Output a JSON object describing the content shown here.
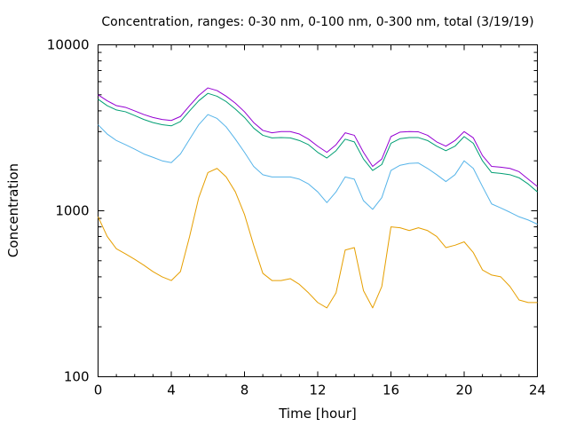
{
  "chart_data": {
    "type": "line",
    "title": "Concentration, ranges: 0-30 nm, 0-100 nm, 0-300 nm, total (3/19/19)",
    "xlabel": "Time [hour]",
    "ylabel": "Concentration",
    "xlim": [
      0,
      24
    ],
    "ylim": [
      100,
      10000
    ],
    "yscale": "log",
    "grid": false,
    "x_ticks": [
      0,
      4,
      8,
      12,
      16,
      20,
      24
    ],
    "x_tick_labels": [
      "0",
      "4",
      "8",
      "12",
      "16",
      "20",
      "24"
    ],
    "y_ticks": [
      100,
      1000,
      10000
    ],
    "y_tick_labels": [
      "100",
      "1000",
      "10000"
    ],
    "x": [
      0,
      0.5,
      1,
      1.5,
      2,
      2.5,
      3,
      3.5,
      4,
      4.5,
      5,
      5.5,
      6,
      6.5,
      7,
      7.5,
      8,
      8.5,
      9,
      9.5,
      10,
      10.5,
      11,
      11.5,
      12,
      12.5,
      13,
      13.5,
      14,
      14.5,
      15,
      15.5,
      16,
      16.5,
      17,
      17.5,
      18,
      18.5,
      19,
      19.5,
      20,
      20.5,
      21,
      21.5,
      22,
      22.5,
      23,
      23.5,
      24
    ],
    "series": [
      {
        "color": "#e69f00",
        "values": [
          920,
          700,
          590,
          550,
          510,
          470,
          430,
          400,
          380,
          430,
          700,
          1200,
          1700,
          1800,
          1600,
          1300,
          950,
          620,
          420,
          380,
          380,
          390,
          360,
          320,
          280,
          260,
          320,
          580,
          600,
          330,
          260,
          350,
          800,
          790,
          760,
          790,
          760,
          700,
          600,
          620,
          650,
          560,
          440,
          410,
          400,
          350,
          290,
          280,
          280
        ]
      },
      {
        "color": "#56b4e9",
        "values": [
          3300,
          2900,
          2650,
          2500,
          2350,
          2200,
          2100,
          2000,
          1950,
          2200,
          2700,
          3300,
          3800,
          3600,
          3200,
          2700,
          2250,
          1850,
          1650,
          1600,
          1600,
          1600,
          1550,
          1450,
          1300,
          1120,
          1300,
          1600,
          1550,
          1150,
          1020,
          1200,
          1750,
          1880,
          1930,
          1940,
          1800,
          1650,
          1500,
          1650,
          2000,
          1800,
          1400,
          1100,
          1040,
          980,
          920,
          880,
          830
        ]
      },
      {
        "color": "#009e73",
        "values": [
          4700,
          4300,
          4050,
          3950,
          3750,
          3550,
          3400,
          3300,
          3250,
          3450,
          4000,
          4600,
          5100,
          4900,
          4550,
          4100,
          3650,
          3150,
          2850,
          2750,
          2760,
          2750,
          2650,
          2500,
          2250,
          2080,
          2300,
          2700,
          2600,
          2050,
          1750,
          1900,
          2550,
          2720,
          2760,
          2760,
          2650,
          2450,
          2300,
          2450,
          2800,
          2550,
          2000,
          1700,
          1680,
          1650,
          1580,
          1450,
          1300
        ]
      },
      {
        "color": "#9400d3",
        "values": [
          5000,
          4600,
          4300,
          4200,
          4000,
          3800,
          3650,
          3550,
          3500,
          3700,
          4300,
          4950,
          5500,
          5300,
          4900,
          4450,
          3950,
          3400,
          3050,
          2950,
          3000,
          3000,
          2900,
          2700,
          2450,
          2250,
          2500,
          2950,
          2850,
          2250,
          1850,
          2050,
          2800,
          2980,
          3000,
          2990,
          2850,
          2600,
          2450,
          2650,
          3000,
          2750,
          2150,
          1850,
          1830,
          1800,
          1720,
          1550,
          1400
        ]
      }
    ]
  }
}
